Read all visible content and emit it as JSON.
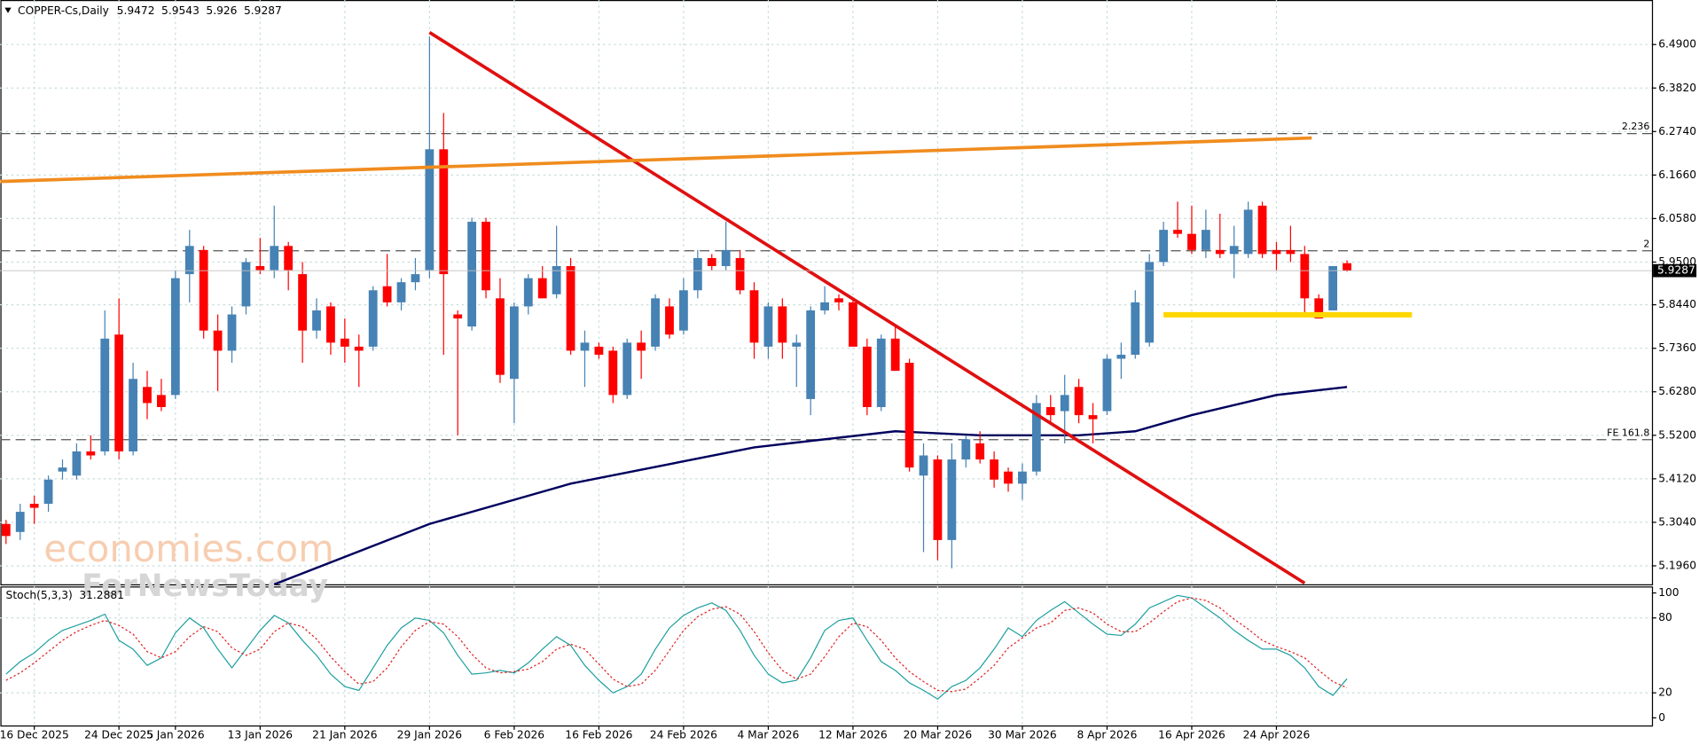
{
  "chart_data": {
    "type": "candlestick",
    "title": "COPPER-Cs,Daily",
    "up_color": "#4682b4",
    "down_color": "#ff0000",
    "open": [
      5.3,
      5.28,
      5.35,
      5.35,
      5.43,
      5.42,
      5.48,
      5.48,
      5.77,
      5.48,
      5.64,
      5.62,
      5.62,
      5.92,
      5.98,
      5.78,
      5.73,
      5.84,
      5.94,
      5.93,
      5.99,
      5.92,
      5.78,
      5.84,
      5.76,
      5.74,
      5.74,
      5.89,
      5.85,
      5.9,
      5.93,
      6.23,
      5.82,
      5.79,
      6.05,
      5.86,
      5.66,
      5.84,
      5.91,
      5.87,
      5.94,
      5.73,
      5.74,
      5.73,
      5.62,
      5.75,
      5.74,
      5.84,
      5.78,
      5.88,
      5.96,
      5.94,
      5.96,
      5.88,
      5.74,
      5.84,
      5.74,
      5.61,
      5.83,
      5.86,
      5.85,
      5.74,
      5.59,
      5.76,
      5.7,
      5.42,
      5.46,
      5.26,
      5.46,
      5.5,
      5.46,
      5.43,
      5.4,
      5.43,
      5.59,
      5.58,
      5.64,
      5.57,
      5.58,
      5.71,
      5.72,
      5.75,
      5.95,
      6.03,
      6.02,
      5.98,
      5.98,
      5.97,
      5.97,
      6.09,
      5.98,
      5.98,
      5.97,
      5.86,
      5.83,
      5.9472
    ],
    "high": [
      5.31,
      5.35,
      5.37,
      5.42,
      5.46,
      5.5,
      5.52,
      5.83,
      5.86,
      5.7,
      5.68,
      5.66,
      5.93,
      6.03,
      5.99,
      5.82,
      5.84,
      5.96,
      6.01,
      6.09,
      6.0,
      5.95,
      5.86,
      5.85,
      5.81,
      5.77,
      5.89,
      5.97,
      5.91,
      5.96,
      6.51,
      6.32,
      5.83,
      6.06,
      6.06,
      5.91,
      5.85,
      5.92,
      5.94,
      6.04,
      5.96,
      5.78,
      5.75,
      5.74,
      5.76,
      5.78,
      5.87,
      5.86,
      5.91,
      5.98,
      5.97,
      6.05,
      5.98,
      5.9,
      5.85,
      5.86,
      5.77,
      5.84,
      5.89,
      5.87,
      5.86,
      5.76,
      5.77,
      5.79,
      5.71,
      5.5,
      5.47,
      5.5,
      5.52,
      5.53,
      5.48,
      5.44,
      5.45,
      5.62,
      5.62,
      5.67,
      5.66,
      5.6,
      5.72,
      5.75,
      5.88,
      5.97,
      6.05,
      6.1,
      6.09,
      6.08,
      6.07,
      6.04,
      6.1,
      6.1,
      6.0,
      6.04,
      5.99,
      5.87,
      5.94,
      5.9543
    ],
    "low": [
      5.25,
      5.26,
      5.3,
      5.33,
      5.41,
      5.41,
      5.46,
      5.47,
      5.46,
      5.47,
      5.56,
      5.58,
      5.61,
      5.85,
      5.76,
      5.63,
      5.7,
      5.82,
      5.92,
      5.91,
      5.88,
      5.7,
      5.76,
      5.72,
      5.7,
      5.64,
      5.73,
      5.84,
      5.83,
      5.88,
      5.91,
      5.72,
      5.52,
      5.78,
      5.86,
      5.65,
      5.55,
      5.82,
      5.86,
      5.86,
      5.72,
      5.64,
      5.71,
      5.6,
      5.61,
      5.66,
      5.73,
      5.76,
      5.77,
      5.86,
      5.93,
      5.93,
      5.87,
      5.71,
      5.71,
      5.71,
      5.64,
      5.57,
      5.82,
      5.83,
      5.74,
      5.57,
      5.58,
      5.68,
      5.43,
      5.23,
      5.21,
      5.19,
      5.44,
      5.45,
      5.39,
      5.38,
      5.36,
      5.42,
      5.55,
      5.5,
      5.55,
      5.5,
      5.57,
      5.66,
      5.71,
      5.74,
      5.94,
      6.01,
      5.97,
      5.96,
      5.96,
      5.91,
      5.96,
      5.96,
      5.93,
      5.95,
      5.82,
      5.81,
      5.83,
      5.926
    ],
    "close": [
      5.27,
      5.33,
      5.34,
      5.41,
      5.44,
      5.48,
      5.47,
      5.76,
      5.48,
      5.66,
      5.6,
      5.59,
      5.91,
      5.99,
      5.78,
      5.73,
      5.82,
      5.95,
      5.93,
      5.99,
      5.93,
      5.78,
      5.83,
      5.75,
      5.74,
      5.73,
      5.88,
      5.85,
      5.9,
      5.92,
      6.23,
      5.92,
      5.81,
      6.05,
      5.88,
      5.67,
      5.84,
      5.91,
      5.86,
      5.94,
      5.73,
      5.75,
      5.72,
      5.62,
      5.75,
      5.73,
      5.86,
      5.77,
      5.88,
      5.96,
      5.94,
      5.98,
      5.88,
      5.75,
      5.84,
      5.75,
      5.75,
      5.83,
      5.85,
      5.85,
      5.74,
      5.59,
      5.76,
      5.68,
      5.44,
      5.47,
      5.26,
      5.46,
      5.51,
      5.46,
      5.41,
      5.4,
      5.43,
      5.6,
      5.57,
      5.62,
      5.57,
      5.56,
      5.71,
      5.72,
      5.85,
      5.95,
      6.03,
      6.02,
      5.98,
      6.03,
      5.97,
      5.99,
      6.08,
      5.97,
      5.97,
      5.97,
      5.86,
      5.81,
      5.94,
      5.9287
    ],
    "xticks": [
      {
        "value": 2,
        "label": "16 Dec 2025"
      },
      {
        "value": 8,
        "label": "24 Dec 2025"
      },
      {
        "value": 12,
        "label": "5 Jan 2026"
      },
      {
        "value": 18,
        "label": "13 Jan 2026"
      },
      {
        "value": 24,
        "label": "21 Jan 2026"
      },
      {
        "value": 30,
        "label": "29 Jan 2026"
      },
      {
        "value": 36,
        "label": "6 Feb 2026"
      },
      {
        "value": 42,
        "label": "16 Feb 2026"
      },
      {
        "value": 48,
        "label": "24 Feb 2026"
      },
      {
        "value": 54,
        "label": "4 Mar 2026"
      },
      {
        "value": 60,
        "label": "12 Mar 2026"
      },
      {
        "value": 66,
        "label": "20 Mar 2026"
      },
      {
        "value": 72,
        "label": "30 Mar 2026"
      },
      {
        "value": 78,
        "label": "8 Apr 2026"
      },
      {
        "value": 84,
        "label": "16 Apr 2026"
      },
      {
        "value": 90,
        "label": "24 Apr 2026"
      }
    ],
    "xlim": [
      -0.4,
      116.6
    ],
    "ylim": [
      5.1502,
      6.6005
    ],
    "yticks": [
      {
        "value": 6.49,
        "label": "6.4900"
      },
      {
        "value": 6.382,
        "label": "6.3820"
      },
      {
        "value": 6.274,
        "label": "6.2740"
      },
      {
        "value": 6.166,
        "label": "6.1660"
      },
      {
        "value": 6.058,
        "label": "6.0580"
      },
      {
        "value": 5.95,
        "label": "5.9500"
      },
      {
        "value": 5.844,
        "label": "5.8440"
      },
      {
        "value": 5.736,
        "label": "5.7360"
      },
      {
        "value": 5.628,
        "label": "5.6280"
      },
      {
        "value": 5.52,
        "label": "5.5200"
      },
      {
        "value": 5.412,
        "label": "5.4120"
      },
      {
        "value": 5.304,
        "label": "5.3040"
      },
      {
        "value": 5.196,
        "label": "5.1960"
      }
    ],
    "grid": true,
    "levels": [
      {
        "value": 6.269,
        "label": "2.236"
      },
      {
        "value": 5.978,
        "label": "2"
      },
      {
        "value": 5.509,
        "label": "FE 161.8"
      }
    ],
    "moving_average": {
      "color": "#00005e",
      "x": [
        19,
        30,
        40,
        53,
        63,
        69,
        76,
        80,
        84,
        90,
        95
      ],
      "values": [
        5.15,
        5.3,
        5.4,
        5.49,
        5.53,
        5.52,
        5.52,
        5.53,
        5.57,
        5.62,
        5.64
      ]
    },
    "trendlines": [
      {
        "color": "#e01010",
        "x": [
          30,
          92
        ],
        "values": [
          6.52,
          5.153
        ]
      },
      {
        "color": "#f08c1e",
        "x": [
          -0.4,
          92.5
        ],
        "values": [
          6.15,
          6.258
        ]
      },
      {
        "color": "#ffd700",
        "x": [
          82,
          99.6
        ],
        "values": [
          5.819,
          5.819
        ]
      }
    ],
    "watermark": [
      "economies.com",
      "ForNewsToday"
    ],
    "stochastic": {
      "title": "Stoch(5,3,3)",
      "ylim": [
        -6.1,
        105.2
      ],
      "yticks": [
        0,
        20,
        80,
        100
      ],
      "series": [
        {
          "color": "#20a0a0",
          "values": [
            35,
            45,
            52,
            62,
            70,
            74,
            78,
            83,
            62,
            55,
            42,
            48,
            68,
            80,
            72,
            55,
            40,
            55,
            70,
            82,
            76,
            62,
            50,
            35,
            25,
            22,
            40,
            58,
            72,
            80,
            78,
            68,
            50,
            35,
            36,
            38,
            36,
            44,
            55,
            65,
            58,
            42,
            30,
            20,
            25,
            35,
            55,
            72,
            82,
            88,
            92,
            86,
            70,
            50,
            35,
            28,
            30,
            48,
            70,
            78,
            80,
            62,
            45,
            38,
            28,
            22,
            15,
            25,
            30,
            40,
            55,
            72,
            65,
            78,
            86,
            93,
            84,
            75,
            67,
            66,
            75,
            88,
            93,
            98,
            96,
            88,
            80,
            70,
            62,
            55,
            55,
            50,
            40,
            25,
            18,
            31.2881
          ]
        },
        {
          "color": "#e02020",
          "values": [
            30,
            36,
            44,
            53,
            62,
            69,
            74,
            78,
            74,
            67,
            53,
            48,
            53,
            65,
            73,
            69,
            56,
            50,
            55,
            69,
            76,
            73,
            63,
            49,
            37,
            27,
            29,
            40,
            57,
            70,
            77,
            75,
            65,
            51,
            40,
            36,
            37,
            39,
            45,
            55,
            59,
            55,
            43,
            31,
            25,
            27,
            38,
            54,
            70,
            81,
            87,
            89,
            83,
            69,
            52,
            38,
            31,
            35,
            49,
            65,
            76,
            73,
            62,
            48,
            37,
            29,
            22,
            21,
            23,
            32,
            42,
            56,
            64,
            72,
            76,
            86,
            88,
            84,
            75,
            69,
            69,
            76,
            85,
            93,
            96,
            94,
            88,
            79,
            71,
            62,
            57,
            53,
            48,
            38,
            29,
            24
          ]
        }
      ]
    }
  }
}
